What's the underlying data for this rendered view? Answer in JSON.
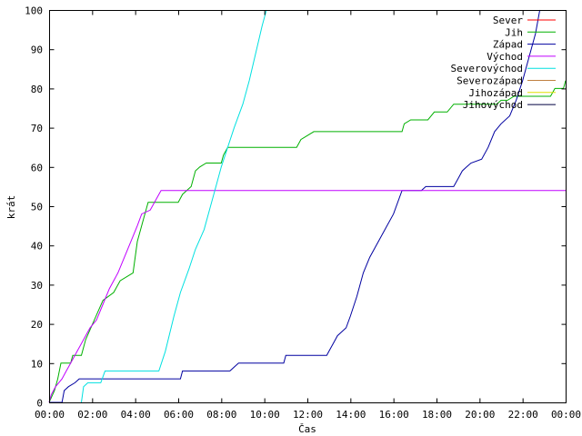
{
  "chart_data": {
    "type": "line",
    "title": "",
    "xlabel": "Čas",
    "ylabel": "krát",
    "xlim": [
      0,
      24
    ],
    "ylim": [
      0,
      100
    ],
    "x_ticks": [
      "00:00",
      "02:00",
      "04:00",
      "06:00",
      "08:00",
      "10:00",
      "12:00",
      "14:00",
      "16:00",
      "18:00",
      "20:00",
      "22:00",
      "00:00"
    ],
    "y_ticks": [
      "0",
      "10",
      "20",
      "30",
      "40",
      "50",
      "60",
      "70",
      "80",
      "90",
      "100"
    ],
    "grid": false,
    "legend_position": "top-right",
    "series": [
      {
        "name": "Sever",
        "color": "#ff0000",
        "points": []
      },
      {
        "name": "Jih",
        "color": "#00b000",
        "points": [
          [
            0,
            0
          ],
          [
            0.25,
            3
          ],
          [
            0.4,
            6
          ],
          [
            0.55,
            10
          ],
          [
            1.0,
            10
          ],
          [
            1.1,
            12
          ],
          [
            1.5,
            12
          ],
          [
            1.7,
            16
          ],
          [
            2.1,
            21
          ],
          [
            2.5,
            26
          ],
          [
            3.0,
            28
          ],
          [
            3.3,
            31
          ],
          [
            3.9,
            33
          ],
          [
            4.1,
            41
          ],
          [
            4.4,
            47
          ],
          [
            4.6,
            51
          ],
          [
            6.0,
            51
          ],
          [
            6.2,
            53
          ],
          [
            6.6,
            55
          ],
          [
            6.8,
            59
          ],
          [
            7.0,
            60
          ],
          [
            7.3,
            61
          ],
          [
            8.0,
            61
          ],
          [
            8.1,
            63
          ],
          [
            8.3,
            65
          ],
          [
            11.5,
            65
          ],
          [
            11.7,
            67
          ],
          [
            12.3,
            69
          ],
          [
            16.4,
            69
          ],
          [
            16.5,
            71
          ],
          [
            16.8,
            72
          ],
          [
            17.6,
            72
          ],
          [
            17.9,
            74
          ],
          [
            18.5,
            74
          ],
          [
            18.8,
            76
          ],
          [
            20.8,
            76
          ],
          [
            21.0,
            77
          ],
          [
            21.3,
            77
          ],
          [
            21.6,
            78
          ],
          [
            23.3,
            78
          ],
          [
            23.5,
            80
          ],
          [
            23.9,
            80
          ],
          [
            24,
            82
          ]
        ]
      },
      {
        "name": "Západ",
        "color": "#0000a0",
        "points": [
          [
            0,
            0
          ],
          [
            0.6,
            0
          ],
          [
            0.7,
            3
          ],
          [
            0.9,
            4
          ],
          [
            1.2,
            5
          ],
          [
            1.4,
            6
          ],
          [
            6.1,
            6
          ],
          [
            6.2,
            8
          ],
          [
            8.4,
            8
          ],
          [
            8.6,
            9
          ],
          [
            8.8,
            10
          ],
          [
            10.9,
            10
          ],
          [
            11.0,
            12
          ],
          [
            12.9,
            12
          ],
          [
            13.0,
            13
          ],
          [
            13.2,
            15
          ],
          [
            13.4,
            17
          ],
          [
            13.8,
            19
          ],
          [
            14.0,
            22
          ],
          [
            14.3,
            27
          ],
          [
            14.6,
            33
          ],
          [
            14.9,
            37
          ],
          [
            15.2,
            40
          ],
          [
            15.6,
            44
          ],
          [
            16.0,
            48
          ],
          [
            16.4,
            54
          ],
          [
            17.3,
            54
          ],
          [
            17.5,
            55
          ],
          [
            18.8,
            55
          ],
          [
            19.0,
            57
          ],
          [
            19.2,
            59
          ],
          [
            19.4,
            60
          ],
          [
            19.6,
            61
          ],
          [
            20.1,
            62
          ],
          [
            20.4,
            65
          ],
          [
            20.7,
            69
          ],
          [
            21.0,
            71
          ],
          [
            21.4,
            73
          ],
          [
            21.7,
            77
          ],
          [
            22.0,
            82
          ],
          [
            22.3,
            88
          ],
          [
            22.6,
            94
          ],
          [
            22.8,
            100
          ]
        ]
      },
      {
        "name": "Východ",
        "color": "#c000ff",
        "points": [
          [
            0,
            0
          ],
          [
            0.1,
            2
          ],
          [
            0.3,
            4
          ],
          [
            0.6,
            6
          ],
          [
            0.8,
            8
          ],
          [
            1.0,
            10
          ],
          [
            1.3,
            13
          ],
          [
            1.6,
            16
          ],
          [
            1.9,
            19
          ],
          [
            2.2,
            21
          ],
          [
            2.5,
            25
          ],
          [
            2.8,
            29
          ],
          [
            3.2,
            33
          ],
          [
            3.5,
            37
          ],
          [
            3.8,
            41
          ],
          [
            4.1,
            45
          ],
          [
            4.3,
            48
          ],
          [
            4.7,
            49
          ],
          [
            5.0,
            52
          ],
          [
            5.2,
            54
          ],
          [
            24,
            54
          ]
        ]
      },
      {
        "name": "Severovýchod",
        "color": "#00e0e0",
        "points": [
          [
            1.5,
            0
          ],
          [
            1.6,
            4
          ],
          [
            1.8,
            5
          ],
          [
            2.4,
            5
          ],
          [
            2.6,
            8
          ],
          [
            5.1,
            8
          ],
          [
            5.4,
            13
          ],
          [
            5.8,
            22
          ],
          [
            6.1,
            28
          ],
          [
            6.5,
            34
          ],
          [
            6.8,
            39
          ],
          [
            7.2,
            44
          ],
          [
            7.5,
            50
          ],
          [
            7.8,
            56
          ],
          [
            8.0,
            60
          ],
          [
            8.3,
            65
          ],
          [
            8.6,
            70
          ],
          [
            9.0,
            76
          ],
          [
            9.3,
            82
          ],
          [
            9.6,
            89
          ],
          [
            9.9,
            96
          ],
          [
            10.1,
            100
          ]
        ]
      },
      {
        "name": "Severozápad",
        "color": "#c08040",
        "points": []
      },
      {
        "name": "Jihozápad",
        "color": "#e0e000",
        "points": []
      },
      {
        "name": "Jihovýchod",
        "color": "#000040",
        "points": []
      }
    ]
  }
}
